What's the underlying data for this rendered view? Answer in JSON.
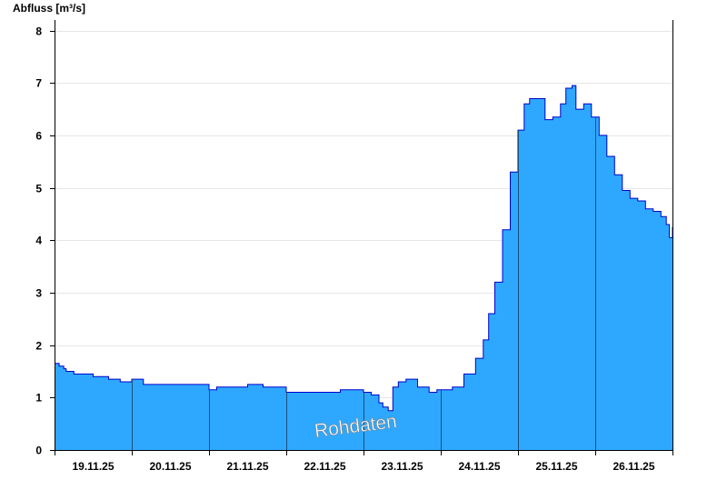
{
  "chart_data": {
    "type": "area",
    "ylabel": "Abfluss [m³/s]",
    "watermark": "Rohdaten",
    "ylim": [
      0,
      8.2
    ],
    "yticks": [
      0,
      1,
      2,
      3,
      4,
      5,
      6,
      7,
      8
    ],
    "x_tick_labels": [
      "19.11.25",
      "20.11.25",
      "21.11.25",
      "22.11.25",
      "23.11.25",
      "24.11.25",
      "25.11.25",
      "26.11.25"
    ],
    "x_range_days": [
      0,
      8
    ],
    "grid": {
      "horizontal": true,
      "vertical_day_separators": true
    },
    "colors": {
      "fill": "#2ea8ff",
      "line": "#0000cc",
      "grid": "#e6e6e6",
      "axis": "#000000"
    },
    "series": [
      {
        "x": [
          0,
          0.06,
          0.12,
          0.15,
          0.25,
          0.35,
          0.5,
          0.7,
          0.85,
          1.0,
          1.05,
          1.15,
          1.3,
          1.5,
          1.7,
          1.85,
          2.0,
          2.1,
          2.3,
          2.5,
          2.7,
          2.9,
          3.0,
          3.1,
          3.3,
          3.5,
          3.7,
          3.9,
          4.0,
          4.1,
          4.2,
          4.25,
          4.32,
          4.38,
          4.45,
          4.55,
          4.7,
          4.85,
          4.95,
          5.0,
          5.15,
          5.3,
          5.45,
          5.55,
          5.62,
          5.7,
          5.8,
          5.9,
          6.0,
          6.08,
          6.15,
          6.25,
          6.35,
          6.45,
          6.55,
          6.62,
          6.7,
          6.75,
          6.85,
          6.95,
          7.05,
          7.15,
          7.25,
          7.35,
          7.45,
          7.55,
          7.65,
          7.75,
          7.85,
          7.92,
          7.96,
          8.0
        ],
        "y": [
          1.65,
          1.6,
          1.55,
          1.5,
          1.45,
          1.45,
          1.4,
          1.35,
          1.3,
          1.35,
          1.35,
          1.25,
          1.25,
          1.25,
          1.25,
          1.25,
          1.15,
          1.2,
          1.2,
          1.25,
          1.2,
          1.2,
          1.1,
          1.1,
          1.1,
          1.1,
          1.15,
          1.15,
          1.1,
          1.05,
          0.9,
          0.82,
          0.75,
          1.2,
          1.3,
          1.35,
          1.2,
          1.1,
          1.15,
          1.15,
          1.2,
          1.45,
          1.75,
          2.1,
          2.6,
          3.2,
          4.2,
          5.3,
          6.1,
          6.6,
          6.7,
          6.7,
          6.3,
          6.35,
          6.6,
          6.9,
          6.95,
          6.5,
          6.6,
          6.35,
          6.0,
          5.6,
          5.25,
          4.95,
          4.8,
          4.75,
          4.6,
          4.55,
          4.45,
          4.3,
          4.05,
          4.25
        ]
      }
    ]
  }
}
